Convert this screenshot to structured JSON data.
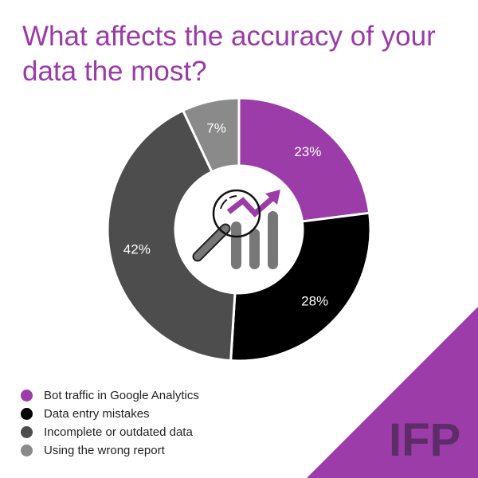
{
  "chart_data": {
    "type": "pie",
    "variant": "donut",
    "title": "What affects the accuracy of your data the most?",
    "categories": [
      "Bot traffic in Google Analytics",
      "Data entry mistakes",
      "Incomplete or outdated data",
      "Using the wrong report"
    ],
    "values": [
      23,
      28,
      42,
      7
    ],
    "labels": [
      "23%",
      "28%",
      "42%",
      "7%"
    ],
    "colors": [
      "#9b3ca8",
      "#000000",
      "#4d4d4d",
      "#8a8a8a"
    ],
    "legend_position": "bottom-left",
    "center_icon": "magnifier-chart-icon"
  },
  "brand": {
    "logo_text": "IFP",
    "color": "#9b3ca8",
    "logo_color": "#5e2c68"
  }
}
